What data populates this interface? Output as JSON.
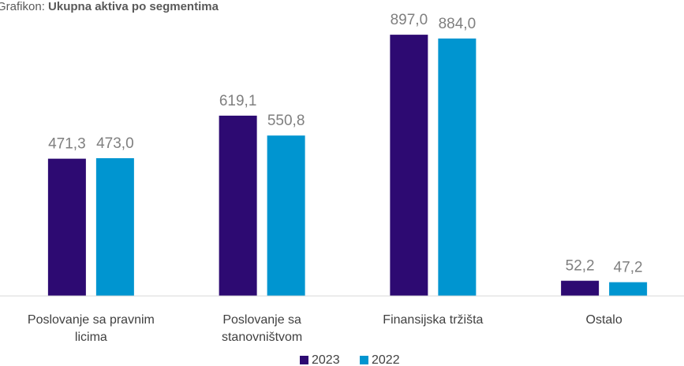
{
  "chart_data": {
    "type": "bar",
    "title_label": "Grafikon:",
    "title": "Ukupna aktiva po segmentima",
    "categories": [
      "Poslovanje sa pravnim licima",
      "Poslovanje sa stanovništvom",
      "Finansijska tržišta",
      "Ostalo"
    ],
    "series": [
      {
        "name": "2023",
        "color": "#2d0a72",
        "values": [
          471.3,
          619.1,
          897.0,
          52.2
        ],
        "value_labels": [
          "471,3",
          "619,1",
          "897,0",
          "52,2"
        ]
      },
      {
        "name": "2022",
        "color": "#0095d0",
        "values": [
          473.0,
          550.8,
          884.0,
          47.2
        ],
        "value_labels": [
          "473,0",
          "550,8",
          "884,0",
          "47,2"
        ]
      }
    ],
    "ylim": [
      0,
      1000
    ]
  }
}
